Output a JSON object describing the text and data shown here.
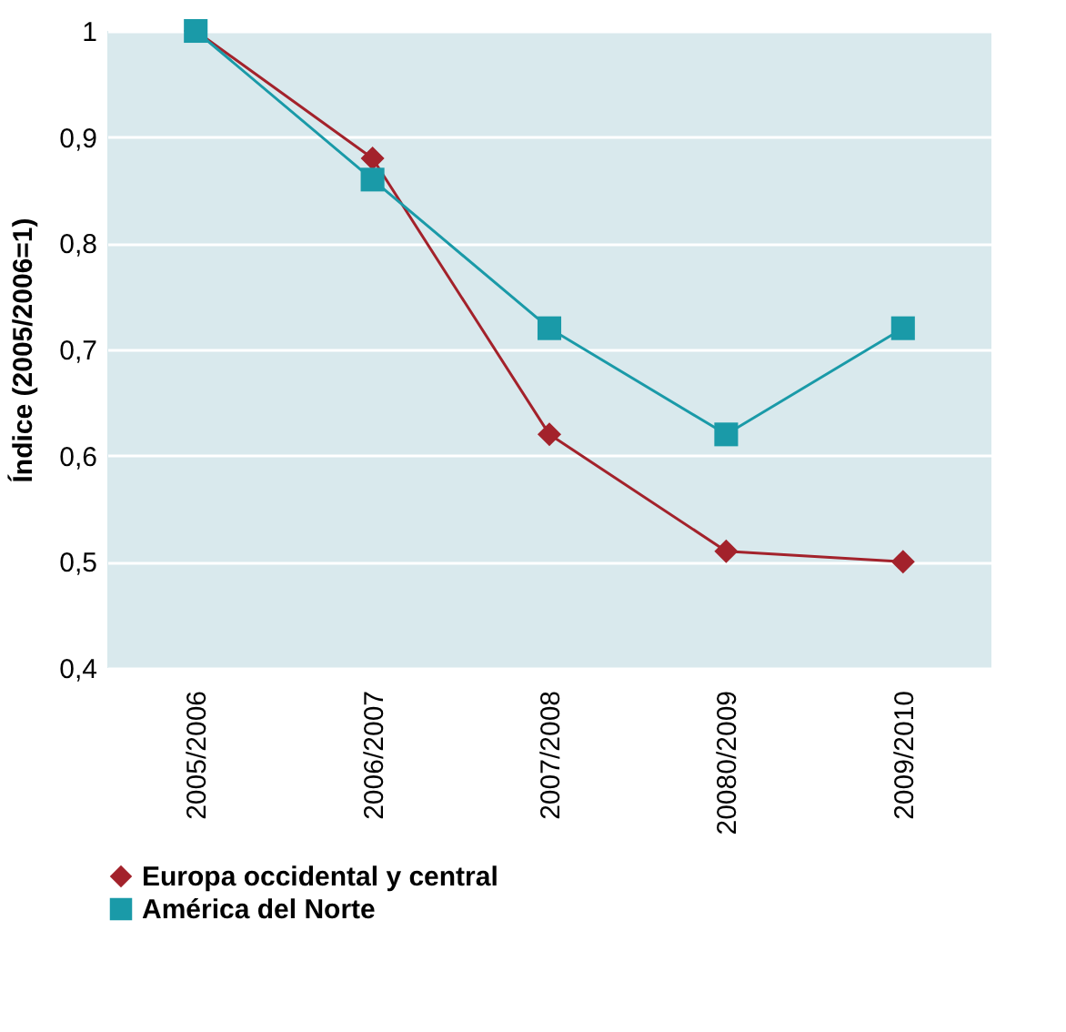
{
  "chart_data": {
    "type": "line",
    "ylabel": "Índice (2005/2006=1)",
    "categories": [
      "2005/2006",
      "2006/2007",
      "2007/2008",
      "20080/2009",
      "2009/2010"
    ],
    "series": [
      {
        "name": "Europa occidental y central",
        "color": "#a3222b",
        "marker": "diamond",
        "values": [
          1.0,
          0.88,
          0.62,
          0.51,
          0.5
        ]
      },
      {
        "name": "América del Norte",
        "color": "#1a9aa8",
        "marker": "square",
        "values": [
          1.0,
          0.86,
          0.72,
          0.62,
          0.72
        ]
      }
    ],
    "ylim": [
      0.4,
      1.0
    ],
    "yticks": [
      {
        "value": 0.4,
        "label": "0,4"
      },
      {
        "value": 0.5,
        "label": "0,5"
      },
      {
        "value": 0.6,
        "label": "0,6"
      },
      {
        "value": 0.7,
        "label": "0,7"
      },
      {
        "value": 0.8,
        "label": "0,8"
      },
      {
        "value": 0.9,
        "label": "0,9"
      },
      {
        "value": 1.0,
        "label": "1"
      }
    ],
    "grid": "y",
    "legend": "bottom"
  }
}
